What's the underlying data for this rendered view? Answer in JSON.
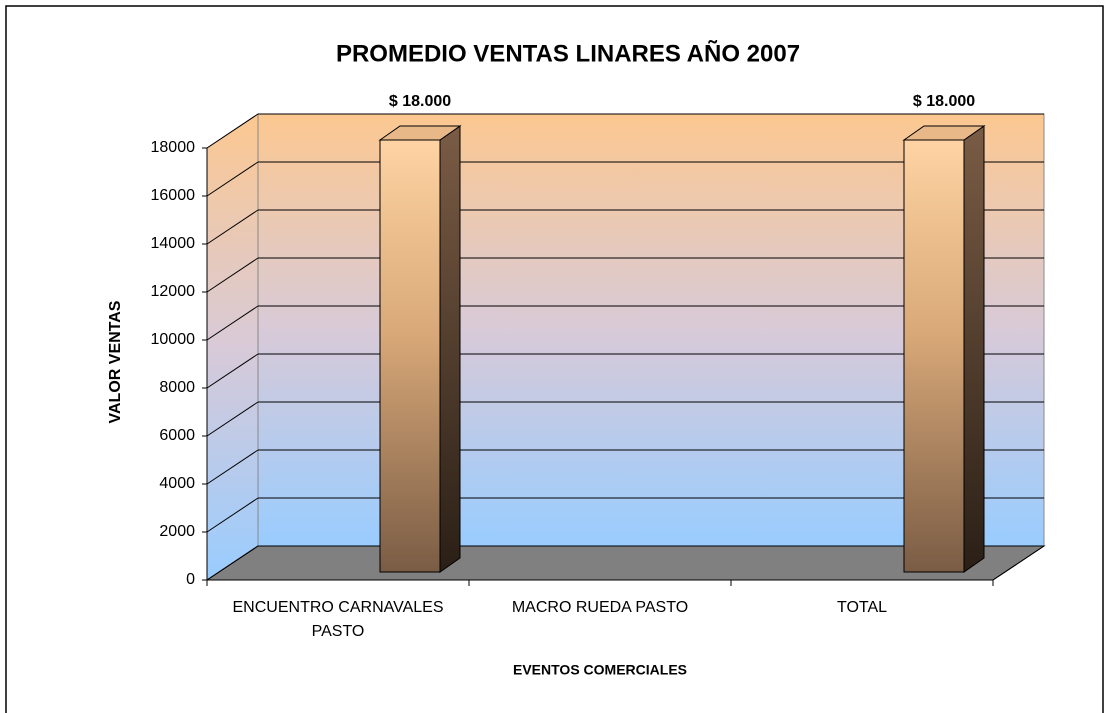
{
  "chart_data": {
    "type": "bar3d",
    "title": "PROMEDIO VENTAS LINARES AÑO 2007",
    "x_label": "EVENTOS COMERCIALES",
    "y_label": "VALOR VENTAS",
    "categories": [
      "ENCUENTRO CARNAVALES PASTO",
      "MACRO RUEDA PASTO",
      "TOTAL"
    ],
    "values": [
      18000,
      null,
      18000
    ],
    "value_labels": [
      "$ 18.000",
      null,
      "$ 18.000"
    ],
    "color": "#c49a6c",
    "ylim": [
      0,
      18000
    ],
    "yticks": [
      0,
      2000,
      4000,
      6000,
      8000,
      10000,
      12000,
      14000,
      16000,
      18000
    ],
    "grid": true
  }
}
